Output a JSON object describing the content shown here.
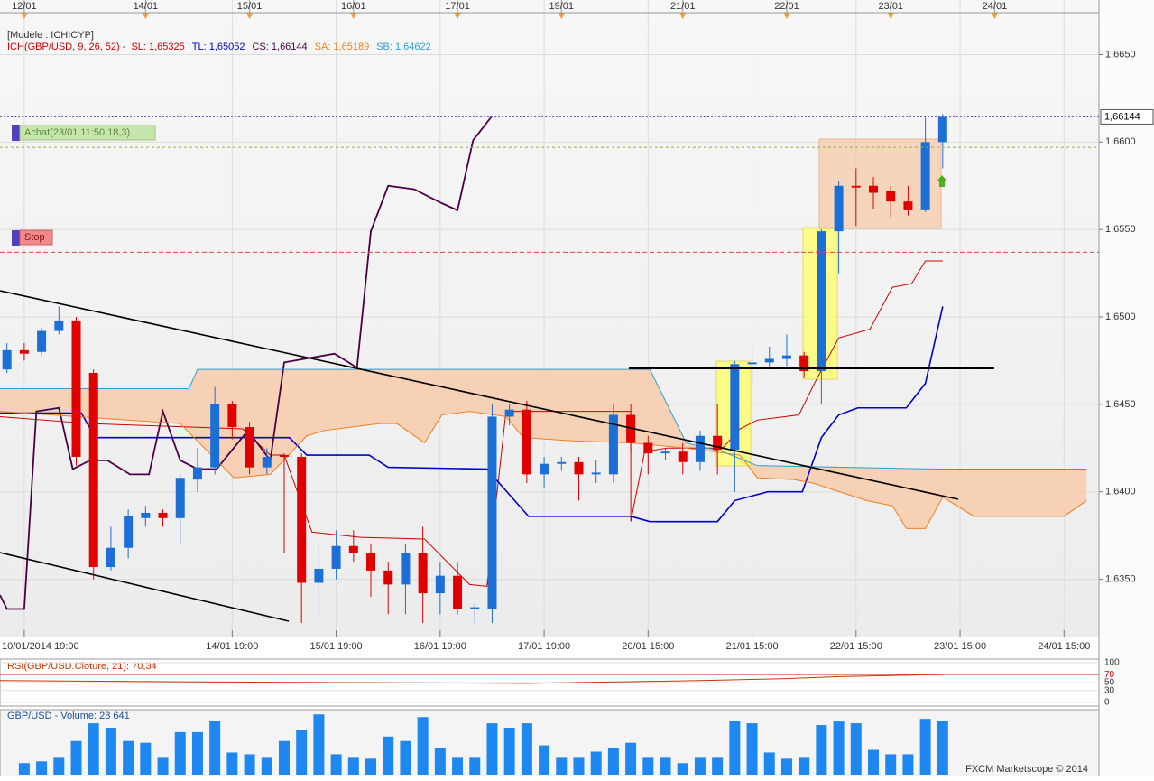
{
  "chart_data": {
    "type": "candlestick",
    "model_label": "[Modèle : ICHICYP]",
    "indicator_label": "ICH(GBP/USD, 9, 26, 52) -",
    "xlim": [
      -0.4,
      62.6
    ],
    "ylim": [
      1.6325,
      1.6674
    ],
    "yticks": [
      {
        "value": 1.635,
        "label": "1,6350"
      },
      {
        "value": 1.64,
        "label": "1,6400"
      },
      {
        "value": 1.645,
        "label": "1,6450"
      },
      {
        "value": 1.65,
        "label": "1,6500"
      },
      {
        "value": 1.655,
        "label": "1,6550"
      },
      {
        "value": 1.66,
        "label": "1,6600"
      },
      {
        "value": 1.665,
        "label": "1,6650"
      }
    ],
    "xticks": [
      {
        "value": 1,
        "label": "10/01/2014 19:00"
      },
      {
        "value": 13,
        "label": "14/01 19:00"
      },
      {
        "value": 19,
        "label": "15/01 19:00"
      },
      {
        "value": 25,
        "label": "16/01 19:00"
      },
      {
        "value": 31,
        "label": "17/01 19:00"
      },
      {
        "value": 37,
        "label": "20/01 15:00"
      },
      {
        "value": 43,
        "label": "21/01 15:00"
      },
      {
        "value": 49,
        "label": "22/01 15:00"
      },
      {
        "value": 55,
        "label": "23/01 15:00"
      },
      {
        "value": 61,
        "label": "24/01 15:00"
      }
    ],
    "top_ticks": [
      {
        "value": 1,
        "label": "12/01"
      },
      {
        "value": 8,
        "label": "14/01"
      },
      {
        "value": 14,
        "label": "15/01"
      },
      {
        "value": 20,
        "label": "16/01"
      },
      {
        "value": 26,
        "label": "17/01"
      },
      {
        "value": 32,
        "label": "19/01"
      },
      {
        "value": 39,
        "label": "21/01"
      },
      {
        "value": 45,
        "label": "22/01"
      },
      {
        "value": 51,
        "label": "23/01"
      },
      {
        "value": 57,
        "label": "24/01"
      }
    ],
    "grid": true,
    "up_color": "#1c6fd4",
    "down_color": "#e00000",
    "candles": {
      "open": [
        1.647,
        1.6481,
        1.648,
        1.6492,
        1.6498,
        1.6468,
        1.6357,
        1.6368,
        1.6385,
        1.6388,
        1.6385,
        1.6407,
        1.6414,
        1.645,
        1.6437,
        1.6414,
        1.6421,
        1.642,
        1.6348,
        1.6356,
        1.6369,
        1.6365,
        1.6355,
        1.6347,
        1.6365,
        1.6342,
        1.6352,
        1.6333,
        1.6333,
        1.6443,
        1.6447,
        1.641,
        1.6416,
        1.6417,
        1.641,
        1.641,
        1.6444,
        1.6428,
        1.6422,
        1.6423,
        1.6417,
        1.6432,
        1.6424,
        1.6473,
        1.6474,
        1.6476,
        1.6478,
        1.6469,
        1.6549,
        1.6575,
        1.6575,
        1.6572,
        1.6566,
        1.6561,
        1.66
      ],
      "high": [
        1.6485,
        1.6485,
        1.6494,
        1.6506,
        1.65,
        1.647,
        1.638,
        1.639,
        1.6392,
        1.639,
        1.641,
        1.6425,
        1.646,
        1.6452,
        1.644,
        1.6425,
        1.6422,
        1.6422,
        1.637,
        1.6378,
        1.6378,
        1.637,
        1.636,
        1.637,
        1.638,
        1.636,
        1.636,
        1.6336,
        1.645,
        1.645,
        1.6452,
        1.642,
        1.642,
        1.642,
        1.6418,
        1.645,
        1.645,
        1.6432,
        1.6425,
        1.6428,
        1.6435,
        1.645,
        1.6475,
        1.6483,
        1.6483,
        1.649,
        1.648,
        1.655,
        1.6578,
        1.6585,
        1.658,
        1.6575,
        1.6575,
        1.6614,
        1.6616
      ],
      "low": [
        1.6468,
        1.6475,
        1.6478,
        1.649,
        1.6415,
        1.635,
        1.6355,
        1.6362,
        1.638,
        1.638,
        1.637,
        1.64,
        1.641,
        1.643,
        1.641,
        1.641,
        1.6365,
        1.6325,
        1.6328,
        1.635,
        1.636,
        1.634,
        1.633,
        1.633,
        1.6325,
        1.633,
        1.633,
        1.6325,
        1.6325,
        1.6438,
        1.6405,
        1.6402,
        1.6412,
        1.6395,
        1.6405,
        1.6405,
        1.6422,
        1.641,
        1.6418,
        1.641,
        1.6412,
        1.641,
        1.64,
        1.646,
        1.647,
        1.6472,
        1.6465,
        1.645,
        1.6525,
        1.6552,
        1.6562,
        1.6557,
        1.6558,
        1.656,
        1.6585
      ],
      "close": [
        1.6481,
        1.6479,
        1.6492,
        1.6498,
        1.642,
        1.6357,
        1.6368,
        1.6386,
        1.6388,
        1.6385,
        1.6408,
        1.6414,
        1.645,
        1.6437,
        1.6414,
        1.642,
        1.642,
        1.6348,
        1.6356,
        1.6369,
        1.6365,
        1.6355,
        1.6347,
        1.6365,
        1.6342,
        1.6352,
        1.6333,
        1.6334,
        1.6443,
        1.6447,
        1.641,
        1.6416,
        1.6417,
        1.641,
        1.6411,
        1.6444,
        1.6428,
        1.6422,
        1.6423,
        1.6417,
        1.6432,
        1.6424,
        1.6473,
        1.6474,
        1.6476,
        1.6478,
        1.6469,
        1.6549,
        1.6575,
        1.6574,
        1.6571,
        1.6566,
        1.6561,
        1.66,
        1.66144
      ]
    },
    "series": [
      {
        "name": "SL: 1,65325",
        "color": "#d00000",
        "x": [
          -0.4,
          4.8,
          13.6,
          15.2,
          16,
          17.6,
          20.4,
          24.1,
          26.7,
          27.7,
          28.1,
          28.8,
          36,
          36,
          36.8,
          38.1,
          41.3,
          42.3,
          43.3,
          45.7,
          46.7,
          48,
          49.8,
          51.1,
          52.2,
          53,
          54
        ],
        "values": [
          1.6443,
          1.6439,
          1.6436,
          1.6421,
          1.6421,
          1.6377,
          1.6374,
          1.6373,
          1.6347,
          1.6346,
          1.6383,
          1.6446,
          1.6446,
          1.6383,
          1.6423,
          1.6425,
          1.6425,
          1.6436,
          1.6441,
          1.6444,
          1.6464,
          1.6488,
          1.6493,
          1.6517,
          1.6519,
          1.6532,
          1.6532
        ]
      },
      {
        "name": "TL: 1,65052",
        "color": "#0000cc",
        "x": [
          -0.4,
          4.3,
          5.1,
          16.3,
          17.3,
          20.9,
          22.0,
          27.7,
          30.1,
          36.0,
          37.1,
          41.0,
          42.0,
          43.9,
          45.9,
          47.0,
          48.0,
          49.1,
          51.9,
          53.0,
          54.0
        ],
        "values": [
          1.6445,
          1.6445,
          1.6431,
          1.6431,
          1.6421,
          1.6421,
          1.6414,
          1.6413,
          1.6386,
          1.6386,
          1.6383,
          1.6383,
          1.6395,
          1.64,
          1.64,
          1.6431,
          1.6444,
          1.6448,
          1.6448,
          1.6462,
          1.6506
        ]
      },
      {
        "name": "CS: 1,66144",
        "color": "#4b0045",
        "x": [
          -0.4,
          0,
          1.0,
          1.7,
          3.0,
          3.8,
          4.8,
          5.8,
          7.1,
          8.2,
          9.0,
          10.0,
          11.0,
          12.1,
          13.9,
          15.2,
          16.0,
          18.9,
          20.2,
          21.0,
          22.0,
          23.5,
          25.1,
          26.0,
          26.9,
          28.0
        ],
        "values": [
          1.6341,
          1.6333,
          1.6333,
          1.6446,
          1.6448,
          1.6413,
          1.6418,
          1.6418,
          1.641,
          1.641,
          1.6446,
          1.6418,
          1.6413,
          1.6413,
          1.6435,
          1.6418,
          1.6474,
          1.6479,
          1.6471,
          1.6549,
          1.6575,
          1.6573,
          1.6565,
          1.6561,
          1.6601,
          1.6615
        ]
      },
      {
        "name": "SA: 1,65189",
        "color": "#f08020",
        "x": [
          -0.4,
          10.0,
          13.1,
          15.2,
          17.3,
          18.3,
          21.5,
          22.5,
          24.1,
          25.1,
          26.7,
          28.8,
          29.8,
          32.9,
          36.0,
          39.2,
          42.3,
          43.3,
          45.4,
          46.5,
          49.6,
          51.1,
          51.9,
          53.0,
          54.0,
          55.8,
          61.0,
          62.3
        ],
        "values": [
          1.6446,
          1.6439,
          1.6408,
          1.641,
          1.6432,
          1.6435,
          1.6439,
          1.6439,
          1.6428,
          1.6444,
          1.6446,
          1.6443,
          1.6431,
          1.6429,
          1.6428,
          1.6425,
          1.6421,
          1.6408,
          1.6407,
          1.6405,
          1.6395,
          1.6392,
          1.6379,
          1.6379,
          1.6397,
          1.6386,
          1.6386,
          1.6395
        ]
      },
      {
        "name": "SB: 1,64622",
        "color": "#2f9fd0",
        "x": [
          -0.4,
          10.5,
          11.0,
          37.1,
          39.2,
          41.3,
          43.3,
          53.8,
          62.3
        ],
        "values": [
          1.6459,
          1.6459,
          1.647,
          1.647,
          1.6428,
          1.6423,
          1.6415,
          1.6413,
          1.6413
        ]
      }
    ],
    "cloud_color": "#f7c9a6",
    "last_price": {
      "value": 1.66144,
      "label": "1,66144"
    },
    "buy": {
      "label": "Achat(23/01 11:50,18,3)",
      "value": 1.6597
    },
    "stop": {
      "label": "Stop",
      "value": 1.6537
    },
    "rsi": {
      "title": "RSI(GBP/USD.Cloture, 21): 70,34",
      "color": "#cc3300",
      "ylim": [
        0,
        100
      ],
      "yticks": [
        100,
        70,
        50,
        30,
        0
      ],
      "x": [
        -0.4,
        10,
        20,
        30,
        40,
        45,
        48,
        54
      ],
      "values": [
        55,
        52,
        50,
        48,
        55,
        60,
        65,
        70.34
      ]
    },
    "volume": {
      "title": "GBP/USD - Volume: 28 641",
      "color": "#1e88f0",
      "ylim": [
        0,
        34000
      ],
      "values": [
        null,
        6110,
        7050,
        9400,
        17860,
        27260,
        24910,
        17860,
        16920,
        9400,
        22560,
        22560,
        28670,
        11750,
        10810,
        9400,
        17860,
        23500,
        31960,
        10810,
        9400,
        8460,
        20210,
        17860,
        30550,
        14100,
        9400,
        9400,
        27260,
        24910,
        27260,
        15510,
        9400,
        9400,
        12220,
        14100,
        16920,
        9400,
        9400,
        6110,
        9400,
        9400,
        28670,
        27260,
        11750,
        8460,
        9400,
        26320,
        28200,
        27260,
        13160,
        10810,
        10810,
        29610,
        28641
      ]
    },
    "footer": "FXCM Marketscope © 2014"
  }
}
